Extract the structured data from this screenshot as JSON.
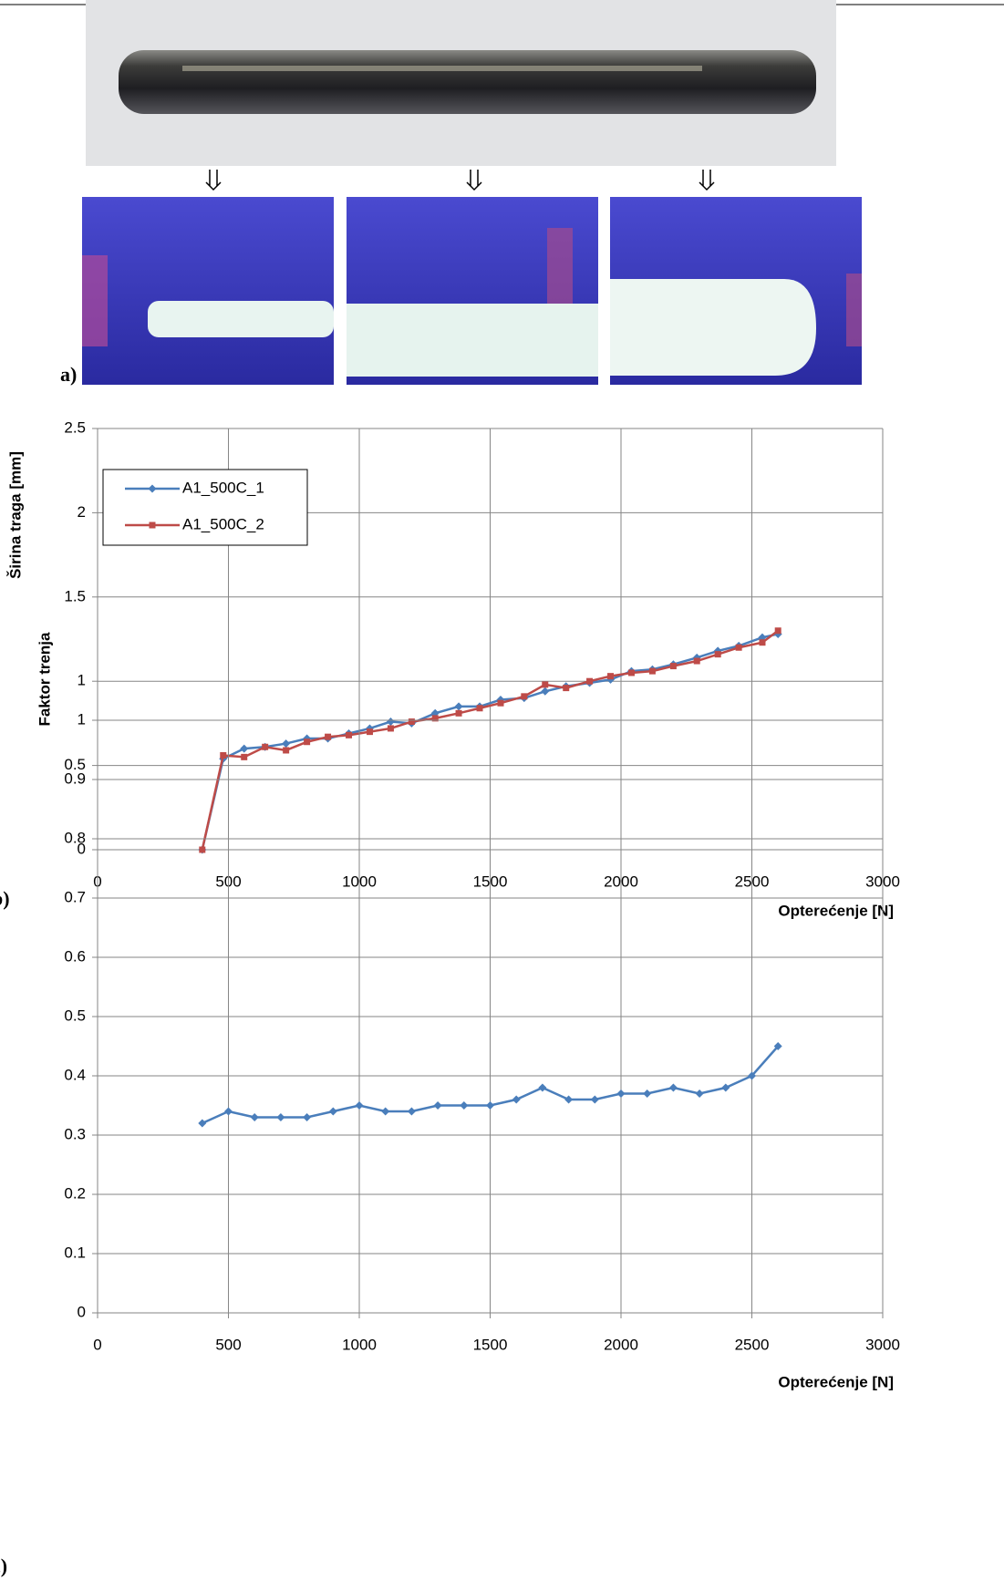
{
  "figure": {
    "panel_labels": [
      "a)",
      "b)",
      "c)"
    ]
  },
  "chart_data": [
    {
      "type": "line",
      "xlabel": "Opterećenje [N]",
      "ylabel": "Širina traga [mm]",
      "x": [
        400,
        480,
        560,
        640,
        720,
        800,
        880,
        960,
        1040,
        1120,
        1200,
        1290,
        1380,
        1460,
        1540,
        1630,
        1710,
        1790,
        1880,
        1960,
        2040,
        2120,
        2200,
        2290,
        2370,
        2450,
        2540,
        2600
      ],
      "series": [
        {
          "name": "A1_500C_1",
          "color": "#4a7ebb",
          "marker": "diamond",
          "values": [
            0,
            0.54,
            0.6,
            0.61,
            0.63,
            0.66,
            0.66,
            0.69,
            0.72,
            0.76,
            0.75,
            0.81,
            0.85,
            0.85,
            0.89,
            0.9,
            0.94,
            0.97,
            0.99,
            1.01,
            1.06,
            1.07,
            1.1,
            1.14,
            1.18,
            1.21,
            1.26,
            1.28
          ]
        },
        {
          "name": "A1_500C_2",
          "color": "#be4b48",
          "marker": "square",
          "values": [
            0,
            0.56,
            0.55,
            0.61,
            0.59,
            0.64,
            0.67,
            0.68,
            0.7,
            0.72,
            0.76,
            0.78,
            0.81,
            0.84,
            0.87,
            0.91,
            0.98,
            0.96,
            1.0,
            1.03,
            1.05,
            1.06,
            1.09,
            1.12,
            1.16,
            1.2,
            1.23,
            1.3
          ]
        }
      ],
      "xlim": [
        0,
        3000
      ],
      "xticks": [
        0,
        500,
        1000,
        1500,
        2000,
        2500,
        3000
      ],
      "ylim": [
        0,
        2.5
      ],
      "yticks": [
        0,
        0.5,
        1,
        1.5,
        2,
        2.5
      ],
      "grid": true,
      "legend": "upper left"
    },
    {
      "type": "line",
      "xlabel": "Opterećenje [N]",
      "ylabel": "Faktor trenja",
      "x": [
        400,
        500,
        600,
        700,
        800,
        900,
        1000,
        1100,
        1200,
        1300,
        1400,
        1500,
        1600,
        1700,
        1800,
        1900,
        2000,
        2100,
        2200,
        2300,
        2400,
        2500,
        2600
      ],
      "values": [
        0.32,
        0.34,
        0.33,
        0.33,
        0.33,
        0.34,
        0.35,
        0.34,
        0.34,
        0.35,
        0.35,
        0.35,
        0.36,
        0.38,
        0.36,
        0.36,
        0.37,
        0.37,
        0.38,
        0.37,
        0.38,
        0.4,
        0.45
      ],
      "color": "#4a7ebb",
      "marker": "diamond",
      "xlim": [
        0,
        3000
      ],
      "xticks": [
        0,
        500,
        1000,
        1500,
        2000,
        2500,
        3000
      ],
      "ylim": [
        0,
        1
      ],
      "yticks": [
        0,
        0.1,
        0.2,
        0.3,
        0.4,
        0.5,
        0.6,
        0.7,
        0.8,
        0.9,
        1
      ],
      "grid": true
    }
  ]
}
